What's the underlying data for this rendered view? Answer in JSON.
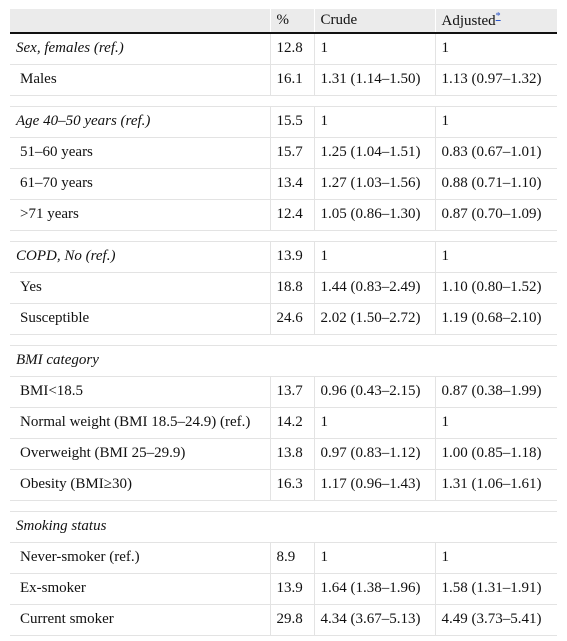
{
  "header": {
    "col_label": "",
    "col_pct": "%",
    "col_crude": "Crude",
    "col_adjusted": "Adjusted",
    "footnote_mark": "*"
  },
  "rows": [
    {
      "label": "Sex, females (ref.)",
      "pct": "12.8",
      "crude": "1",
      "adjusted": "1"
    },
    {
      "label": "Males",
      "pct": "16.1",
      "crude": "1.31 (1.14–1.50)",
      "adjusted": "1.13 (0.97–1.32)"
    },
    {
      "label": "Age 40–50 years (ref.)",
      "pct": "15.5",
      "crude": "1",
      "adjusted": "1"
    },
    {
      "label": "51–60 years",
      "pct": "15.7",
      "crude": "1.25 (1.04–1.51)",
      "adjusted": "0.83 (0.67–1.01)"
    },
    {
      "label": "61–70 years",
      "pct": "13.4",
      "crude": "1.27 (1.03–1.56)",
      "adjusted": "0.88 (0.71–1.10)"
    },
    {
      "label": ">71 years",
      "pct": "12.4",
      "crude": "1.05 (0.86–1.30)",
      "adjusted": "0.87 (0.70–1.09)"
    },
    {
      "label": "COPD, No (ref.)",
      "pct": "13.9",
      "crude": "1",
      "adjusted": "1"
    },
    {
      "label": "Yes",
      "pct": "18.8",
      "crude": "1.44 (0.83–2.49)",
      "adjusted": "1.10 (0.80–1.52)"
    },
    {
      "label": "Susceptible",
      "pct": "24.6",
      "crude": "2.02 (1.50–2.72)",
      "adjusted": "1.19 (0.68–2.10)"
    },
    {
      "label": "BMI category"
    },
    {
      "label": "BMI<18.5",
      "pct": "13.7",
      "crude": "0.96 (0.43–2.15)",
      "adjusted": "0.87 (0.38–1.99)"
    },
    {
      "label": "Normal weight (BMI 18.5–24.9) (ref.)",
      "pct": "14.2",
      "crude": "1",
      "adjusted": "1"
    },
    {
      "label": "Overweight (BMI 25–29.9)",
      "pct": "13.8",
      "crude": "0.97 (0.83–1.12)",
      "adjusted": "1.00 (0.85–1.18)"
    },
    {
      "label": "Obesity (BMI≥30)",
      "pct": "16.3",
      "crude": "1.17 (0.96–1.43)",
      "adjusted": "1.31 (1.06–1.61)"
    },
    {
      "label": "Smoking status"
    },
    {
      "label": "Never-smoker (ref.)",
      "pct": "8.9",
      "crude": "1",
      "adjusted": "1"
    },
    {
      "label": "Ex-smoker",
      "pct": "13.9",
      "crude": "1.64 (1.38–1.96)",
      "adjusted": "1.58 (1.31–1.91)"
    },
    {
      "label": "Current smoker",
      "pct": "29.8",
      "crude": "4.34 (3.67–5.13)",
      "adjusted": "4.49 (3.73–5.41)"
    }
  ]
}
